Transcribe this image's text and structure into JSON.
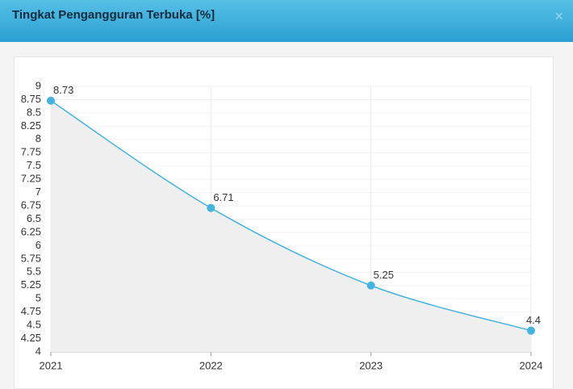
{
  "header": {
    "title": "Tingkat Pengangguran Terbuka [%]",
    "close": "×"
  },
  "chart_data": {
    "type": "area",
    "categories": [
      "2021",
      "2022",
      "2023",
      "2024"
    ],
    "values": [
      8.73,
      6.71,
      5.25,
      4.4
    ],
    "color": "#45b3e0",
    "fill": "#efefef",
    "ylim": [
      4,
      9
    ],
    "yticks": [
      4,
      4.25,
      4.5,
      4.75,
      5,
      5.25,
      5.5,
      5.75,
      6,
      6.25,
      6.5,
      6.75,
      7,
      7.25,
      7.5,
      7.75,
      8,
      8.25,
      8.5,
      8.75,
      9
    ],
    "grid": true,
    "data_labels": true
  }
}
